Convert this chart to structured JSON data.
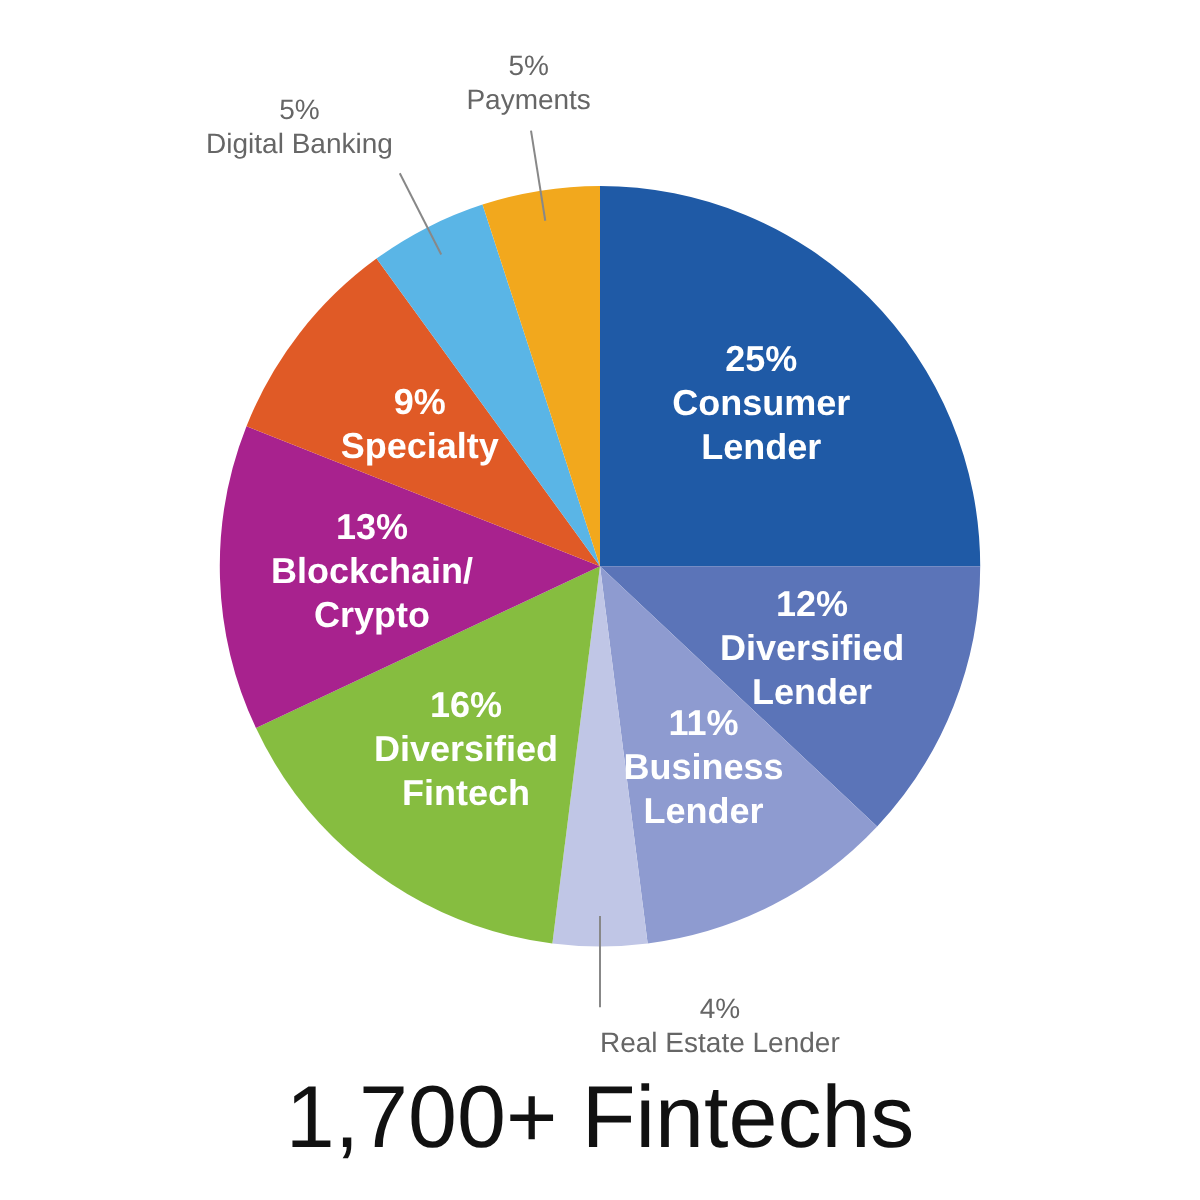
{
  "chart_data": {
    "type": "pie",
    "title": "1,700+ Fintechs",
    "categories": [
      "Consumer Lender",
      "Diversified Lender",
      "Business Lender",
      "Real Estate Lender",
      "Diversified Fintech",
      "Blockchain/Crypto",
      "Specialty",
      "Digital Banking",
      "Payments"
    ],
    "values": [
      25,
      12,
      11,
      4,
      16,
      13,
      9,
      5,
      5
    ],
    "value_labels": [
      "25%",
      "12%",
      "11%",
      "4%",
      "16%",
      "13%",
      "9%",
      "5%",
      "5%"
    ],
    "colors": [
      "#1f5aa6",
      "#5b74b8",
      "#8e9bd0",
      "#c0c6e6",
      "#86bd40",
      "#a8228e",
      "#e05a26",
      "#5ab5e6",
      "#f2a81d"
    ],
    "legend": false
  }
}
